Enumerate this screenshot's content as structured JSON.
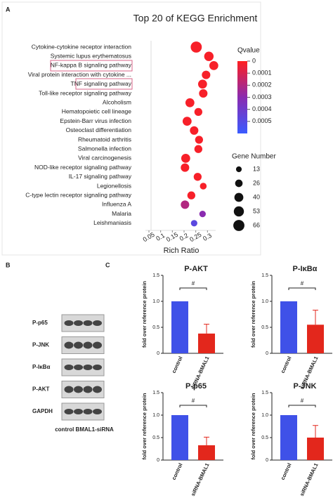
{
  "panel_labels": [
    "A",
    "B",
    "C"
  ],
  "blot": {
    "rows": [
      "P-p65",
      "P-JNK",
      "P-IκBα",
      "P-AKT",
      "GAPDH"
    ],
    "lanes": "control BMAL1-siRNA"
  },
  "chart_data": [
    {
      "type": "scatter",
      "title": "Top 20 of KEGG Enrichment",
      "x_label": "Rich Ratio",
      "categories": [
        "Cytokine-cytokine receptor interaction",
        "Systemic lupus erythematosus",
        "NF-kappa B signaling pathway",
        "Viral protein interaction with cytokine ...",
        "TNF signaling pathway",
        "Toll-like receptor signaling pathway",
        "Alcoholism",
        "Hematopoietic cell lineage",
        "Epstein-Barr virus infection",
        "Osteoclast differentiation",
        "Rheumatoid arthritis",
        "Salmonella infection",
        "Viral carcinogenesis",
        "NOD-like receptor signaling pathway",
        "IL-17 signaling pathway",
        "Legionellosis",
        "C-type lectin receptor signaling pathway",
        "Influenza A",
        "Malaria",
        "Leishmaniasis"
      ],
      "values": [
        0.252,
        0.306,
        0.327,
        0.294,
        0.279,
        0.282,
        0.225,
        0.261,
        0.213,
        0.243,
        0.264,
        0.261,
        0.207,
        0.204,
        0.258,
        0.282,
        0.231,
        0.204,
        0.279,
        0.243
      ],
      "sizes": [
        66,
        45,
        40,
        35,
        40,
        35,
        40,
        30,
        40,
        35,
        30,
        30,
        40,
        35,
        30,
        20,
        30,
        35,
        18,
        18
      ],
      "qvalues": [
        2e-05,
        2e-05,
        2e-05,
        2e-05,
        2e-05,
        2e-05,
        2e-05,
        2e-05,
        2e-05,
        2e-05,
        2e-05,
        2e-05,
        2e-05,
        2e-05,
        2e-05,
        2e-05,
        2e-05,
        0.0002,
        0.0003,
        0.00048
      ],
      "xlim": [
        0.035,
        0.335
      ],
      "xticks": [
        0.05,
        0.1,
        0.15,
        0.2,
        0.25,
        0.3
      ],
      "color_legend_title": "Qvalue",
      "color_lim": [
        0,
        0.0006
      ],
      "color_ticks": [
        0,
        0.0001,
        0.0002,
        0.0003,
        0.0004,
        0.0005
      ],
      "color_scale": [
        "#ff1f1f",
        "#8a2bb0",
        "#3a5bff"
      ],
      "size_legend_title": "Gene Number",
      "size_ticks": [
        13,
        26,
        40,
        53,
        66
      ]
    },
    {
      "type": "bar",
      "title": "P-AKT",
      "y_label": "fold over reference protein",
      "categories": [
        "control",
        "siRNA-BMAL1"
      ],
      "values": [
        1,
        0.38
      ],
      "errors": [
        0,
        0.18
      ],
      "colors": [
        "#3f51e8",
        "#e3271c"
      ],
      "ylim": [
        0,
        1.5
      ],
      "yticks": [
        0,
        0.5,
        {
          "value": 1,
          "label": "1.0"
        },
        1.5
      ],
      "annotation": "#"
    },
    {
      "type": "bar",
      "title": "P-IκBα",
      "y_label": "fold over reference protein",
      "categories": [
        "control",
        "siRNA-BMAL1"
      ],
      "values": [
        1,
        0.55
      ],
      "errors": [
        0,
        0.28
      ],
      "colors": [
        "#3f51e8",
        "#e3271c"
      ],
      "ylim": [
        0,
        1.5
      ],
      "yticks": [
        0,
        0.5,
        {
          "value": 1,
          "label": "1.0"
        },
        1.5
      ],
      "annotation": "#"
    },
    {
      "type": "bar",
      "title": "P-p65",
      "y_label": "fold over reference protein",
      "categories": [
        "control",
        "siRNA-BMAL1"
      ],
      "values": [
        1,
        0.33
      ],
      "errors": [
        0,
        0.18
      ],
      "colors": [
        "#3f51e8",
        "#e3271c"
      ],
      "ylim": [
        0,
        1.5
      ],
      "yticks": [
        0,
        0.5,
        {
          "value": 1,
          "label": "1.0"
        },
        1.5
      ],
      "annotation": "#"
    },
    {
      "type": "bar",
      "title": "P-JNK",
      "y_label": "fold over reference protein",
      "categories": [
        "control",
        "siRNA-BMAL1"
      ],
      "values": [
        1,
        0.5
      ],
      "errors": [
        0,
        0.27
      ],
      "colors": [
        "#3f51e8",
        "#e3271c"
      ],
      "ylim": [
        0,
        1.5
      ],
      "yticks": [
        0,
        0.5,
        {
          "value": 1,
          "label": "1.0"
        },
        1.5
      ],
      "annotation": "#"
    }
  ]
}
